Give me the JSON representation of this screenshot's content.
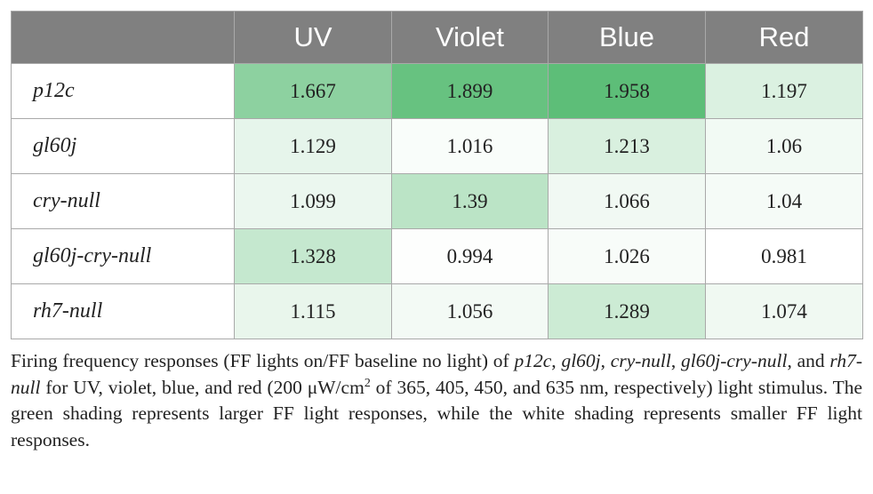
{
  "table": {
    "header": [
      "",
      "UV",
      "Violet",
      "Blue",
      "Red"
    ],
    "rows": [
      [
        "p12c",
        1.667,
        1.899,
        1.958,
        1.197
      ],
      [
        "gl60j",
        1.129,
        1.016,
        1.213,
        1.06
      ],
      [
        "cry-null",
        1.099,
        1.39,
        1.066,
        1.04
      ],
      [
        "gl60j-cry-null",
        1.328,
        0.994,
        1.026,
        0.981
      ],
      [
        "rh7-null",
        1.115,
        1.056,
        1.289,
        1.074
      ]
    ],
    "low_color": "#ffffff",
    "high_color": "#5dbe78"
  },
  "caption": [
    {
      "text": "Firing frequency responses (FF lights on/FF baseline no light) of ",
      "style": "normal"
    },
    {
      "text": "p12c",
      "style": "italic"
    },
    {
      "text": ", ",
      "style": "normal"
    },
    {
      "text": "gl60j",
      "style": "italic"
    },
    {
      "text": ", ",
      "style": "normal"
    },
    {
      "text": "cry-null",
      "style": "italic"
    },
    {
      "text": ", ",
      "style": "normal"
    },
    {
      "text": "gl60j-cry-null",
      "style": "italic"
    },
    {
      "text": ", and ",
      "style": "normal"
    },
    {
      "text": "rh7-null",
      "style": "italic"
    },
    {
      "text": " for UV, violet, blue, and red (200 μW/cm",
      "style": "normal"
    },
    {
      "text": "2",
      "style": "sup"
    },
    {
      "text": " of 365, 405, 450, and 635 nm, respectively) light stimulus. The green shading represents larger FF light responses, while the white shading represents smaller FF light responses.",
      "style": "normal"
    }
  ]
}
